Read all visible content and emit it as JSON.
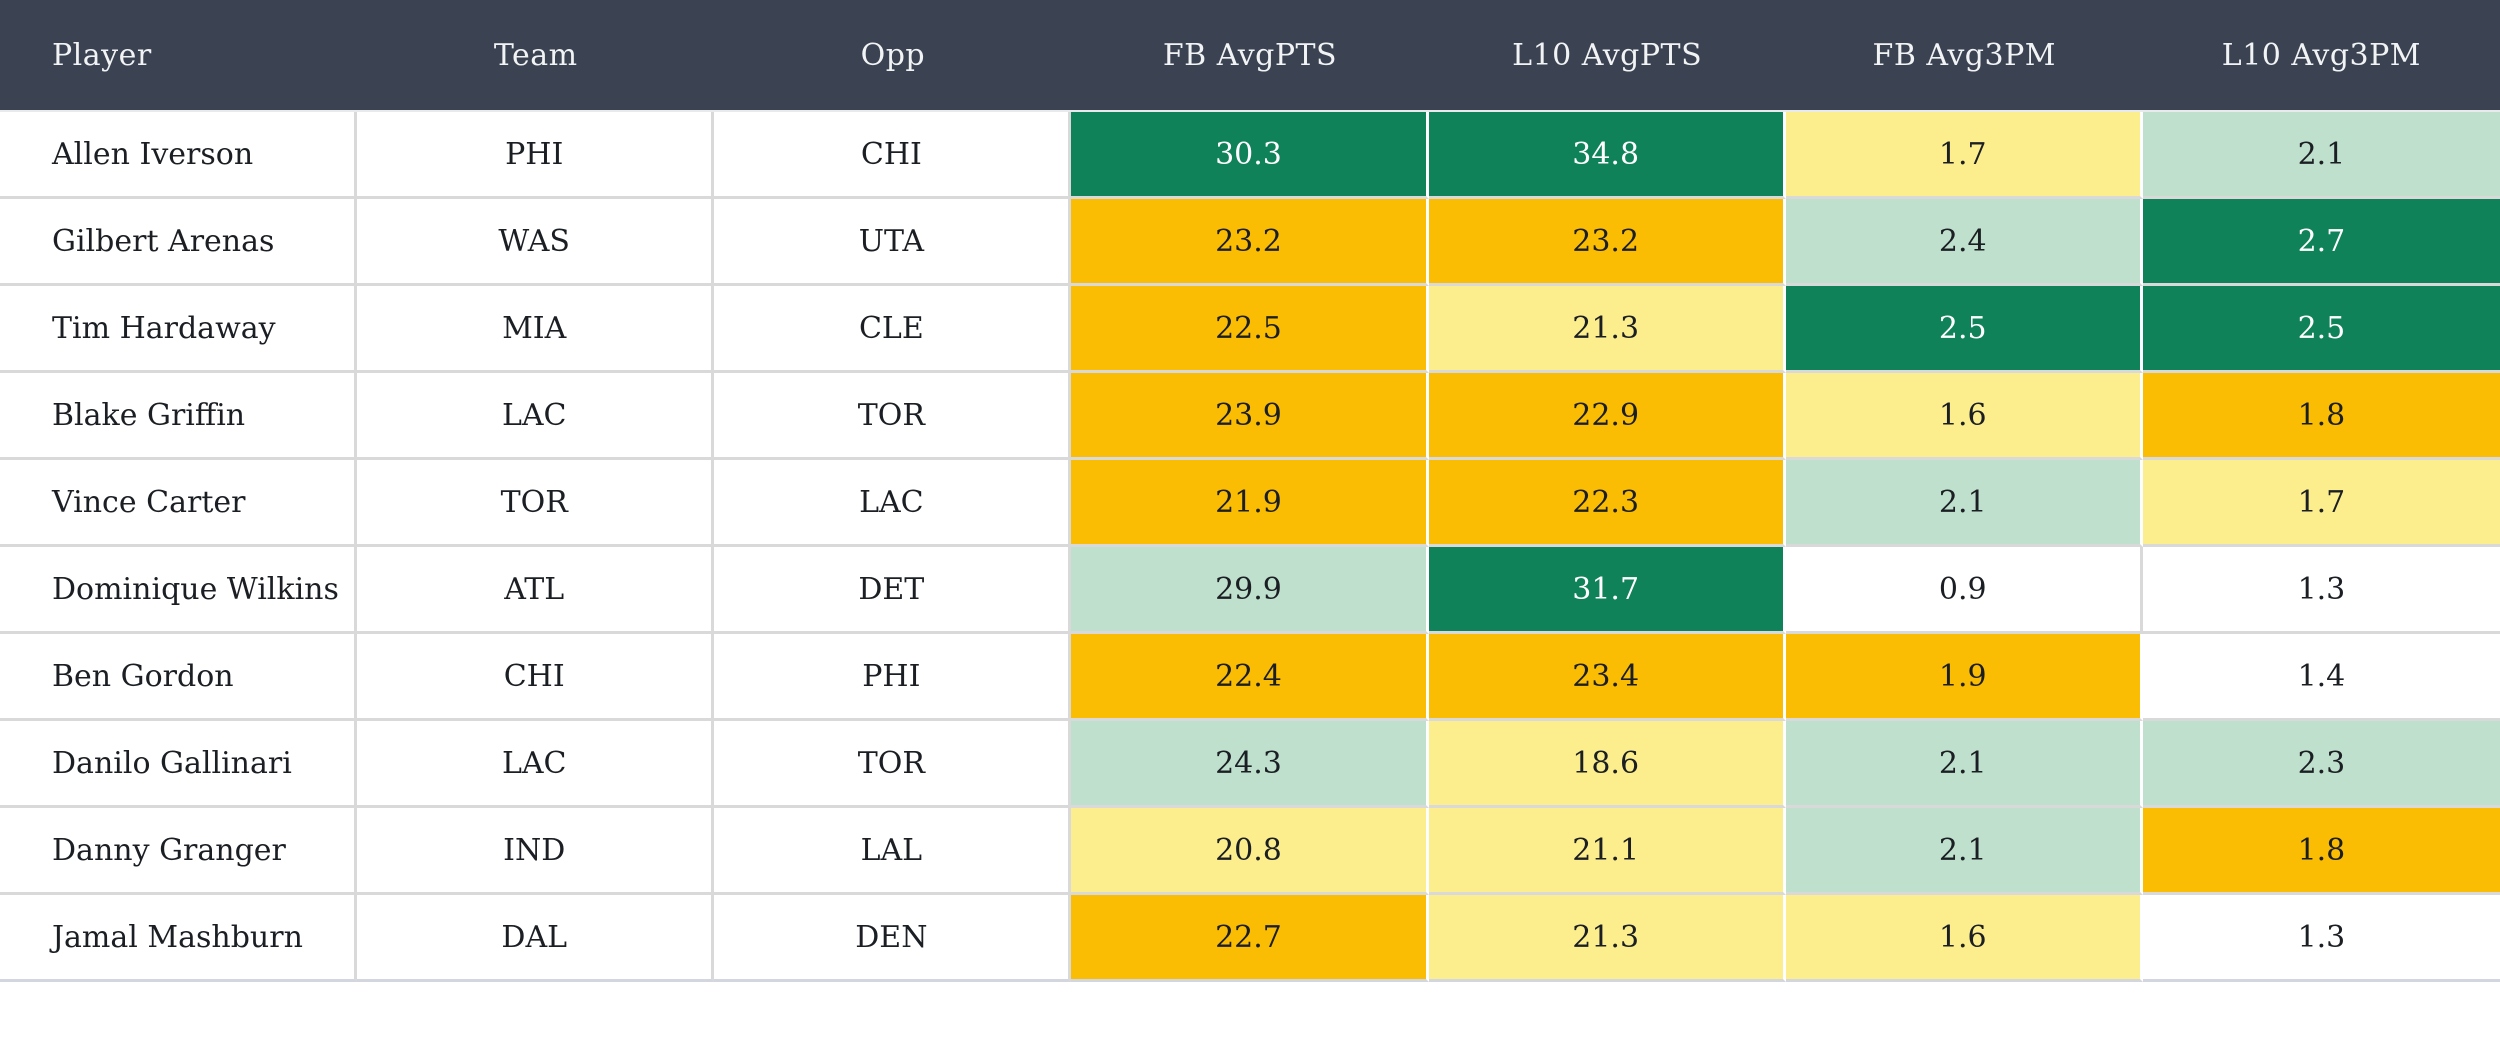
{
  "colors": {
    "header_bg": "#3b4353",
    "header_text": "#f1f3f4",
    "grid_line": "#d9d9d9",
    "cell_text": "#1b1f24",
    "dark_cell_text": "#ffffff",
    "scale": {
      "dark_green": "#0f8259",
      "light_green": "#bfe0cd",
      "pale_yellow": "#fdee8d",
      "amber": "#fbbc04",
      "none": "#ffffff"
    }
  },
  "chart_data": {
    "type": "table",
    "title": "",
    "layout": "heatmap-table, 7 equal columns, header dark slate, metric cells color-coded by value",
    "columns": [
      "Player",
      "Team",
      "Opp",
      "FB AvgPTS",
      "L10 AvgPTS",
      "FB Avg3PM",
      "L10 Avg3PM"
    ],
    "rows": [
      {
        "player": "Allen Iverson",
        "team": "PHI",
        "opp": "CHI",
        "metrics": [
          {
            "column": "FB AvgPTS",
            "value": "30.3",
            "tone": "dark_green"
          },
          {
            "column": "L10 AvgPTS",
            "value": "34.8",
            "tone": "dark_green"
          },
          {
            "column": "FB Avg3PM",
            "value": "1.7",
            "tone": "pale_yellow"
          },
          {
            "column": "L10 Avg3PM",
            "value": "2.1",
            "tone": "light_green"
          }
        ]
      },
      {
        "player": "Gilbert Arenas",
        "team": "WAS",
        "opp": "UTA",
        "metrics": [
          {
            "column": "FB AvgPTS",
            "value": "23.2",
            "tone": "amber"
          },
          {
            "column": "L10 AvgPTS",
            "value": "23.2",
            "tone": "amber"
          },
          {
            "column": "FB Avg3PM",
            "value": "2.4",
            "tone": "light_green"
          },
          {
            "column": "L10 Avg3PM",
            "value": "2.7",
            "tone": "dark_green"
          }
        ]
      },
      {
        "player": "Tim Hardaway",
        "team": "MIA",
        "opp": "CLE",
        "metrics": [
          {
            "column": "FB AvgPTS",
            "value": "22.5",
            "tone": "amber"
          },
          {
            "column": "L10 AvgPTS",
            "value": "21.3",
            "tone": "pale_yellow"
          },
          {
            "column": "FB Avg3PM",
            "value": "2.5",
            "tone": "dark_green"
          },
          {
            "column": "L10 Avg3PM",
            "value": "2.5",
            "tone": "dark_green"
          }
        ]
      },
      {
        "player": "Blake Griffin",
        "team": "LAC",
        "opp": "TOR",
        "metrics": [
          {
            "column": "FB AvgPTS",
            "value": "23.9",
            "tone": "amber"
          },
          {
            "column": "L10 AvgPTS",
            "value": "22.9",
            "tone": "amber"
          },
          {
            "column": "FB Avg3PM",
            "value": "1.6",
            "tone": "pale_yellow"
          },
          {
            "column": "L10 Avg3PM",
            "value": "1.8",
            "tone": "amber"
          }
        ]
      },
      {
        "player": "Vince Carter",
        "team": "TOR",
        "opp": "LAC",
        "metrics": [
          {
            "column": "FB AvgPTS",
            "value": "21.9",
            "tone": "amber"
          },
          {
            "column": "L10 AvgPTS",
            "value": "22.3",
            "tone": "amber"
          },
          {
            "column": "FB Avg3PM",
            "value": "2.1",
            "tone": "light_green"
          },
          {
            "column": "L10 Avg3PM",
            "value": "1.7",
            "tone": "pale_yellow"
          }
        ]
      },
      {
        "player": "Dominique Wilkins",
        "team": "ATL",
        "opp": "DET",
        "metrics": [
          {
            "column": "FB AvgPTS",
            "value": "29.9",
            "tone": "light_green"
          },
          {
            "column": "L10 AvgPTS",
            "value": "31.7",
            "tone": "dark_green"
          },
          {
            "column": "FB Avg3PM",
            "value": "0.9",
            "tone": "none"
          },
          {
            "column": "L10 Avg3PM",
            "value": "1.3",
            "tone": "none"
          }
        ]
      },
      {
        "player": "Ben Gordon",
        "team": "CHI",
        "opp": "PHI",
        "metrics": [
          {
            "column": "FB AvgPTS",
            "value": "22.4",
            "tone": "amber"
          },
          {
            "column": "L10 AvgPTS",
            "value": "23.4",
            "tone": "amber"
          },
          {
            "column": "FB Avg3PM",
            "value": "1.9",
            "tone": "amber"
          },
          {
            "column": "L10 Avg3PM",
            "value": "1.4",
            "tone": "none"
          }
        ]
      },
      {
        "player": "Danilo Gallinari",
        "team": "LAC",
        "opp": "TOR",
        "metrics": [
          {
            "column": "FB AvgPTS",
            "value": "24.3",
            "tone": "light_green"
          },
          {
            "column": "L10 AvgPTS",
            "value": "18.6",
            "tone": "pale_yellow"
          },
          {
            "column": "FB Avg3PM",
            "value": "2.1",
            "tone": "light_green"
          },
          {
            "column": "L10 Avg3PM",
            "value": "2.3",
            "tone": "light_green"
          }
        ]
      },
      {
        "player": "Danny Granger",
        "team": "IND",
        "opp": "LAL",
        "metrics": [
          {
            "column": "FB AvgPTS",
            "value": "20.8",
            "tone": "pale_yellow"
          },
          {
            "column": "L10 AvgPTS",
            "value": "21.1",
            "tone": "pale_yellow"
          },
          {
            "column": "FB Avg3PM",
            "value": "2.1",
            "tone": "light_green"
          },
          {
            "column": "L10 Avg3PM",
            "value": "1.8",
            "tone": "amber"
          }
        ]
      },
      {
        "player": "Jamal Mashburn",
        "team": "DAL",
        "opp": "DEN",
        "metrics": [
          {
            "column": "FB AvgPTS",
            "value": "22.7",
            "tone": "amber"
          },
          {
            "column": "L10 AvgPTS",
            "value": "21.3",
            "tone": "pale_yellow"
          },
          {
            "column": "FB Avg3PM",
            "value": "1.6",
            "tone": "pale_yellow"
          },
          {
            "column": "L10 Avg3PM",
            "value": "1.3",
            "tone": "none"
          }
        ]
      }
    ]
  }
}
